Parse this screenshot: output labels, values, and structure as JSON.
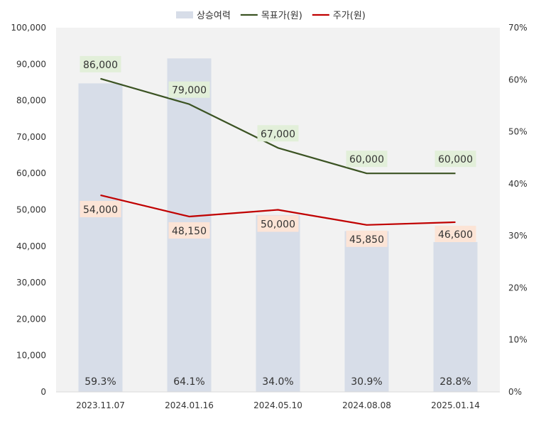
{
  "chart_data": {
    "type": "bar+line",
    "categories": [
      "2023.11.07",
      "2024.01.16",
      "2024.05.10",
      "2024.08.08",
      "2025.01.14"
    ],
    "series": [
      {
        "name": "상승여력",
        "type": "bar",
        "axis": "right",
        "values": [
          59.3,
          64.1,
          34.0,
          30.9,
          28.8
        ],
        "labels": [
          "59.3%",
          "64.1%",
          "34.0%",
          "30.9%",
          "28.8%"
        ],
        "color": "#d7dde8"
      },
      {
        "name": "목표가(원)",
        "type": "line",
        "axis": "left",
        "values": [
          86000,
          79000,
          67000,
          60000,
          60000
        ],
        "labels": [
          "86,000",
          "79,000",
          "67,000",
          "60,000",
          "60,000"
        ],
        "color": "#3b5323",
        "label_bg": "#e2efd9"
      },
      {
        "name": "주가(원)",
        "type": "line",
        "axis": "left",
        "values": [
          54000,
          48150,
          50000,
          45850,
          46600
        ],
        "labels": [
          "54,000",
          "48,150",
          "50,000",
          "45,850",
          "46,600"
        ],
        "color": "#c00000",
        "label_bg": "#fce4d6"
      }
    ],
    "y_left": {
      "range": [
        0,
        100000
      ],
      "ticks": [
        "0",
        "10,000",
        "20,000",
        "30,000",
        "40,000",
        "50,000",
        "60,000",
        "70,000",
        "80,000",
        "90,000",
        "100,000"
      ]
    },
    "y_right": {
      "range": [
        0,
        70
      ],
      "ticks": [
        "0%",
        "10%",
        "20%",
        "30%",
        "40%",
        "50%",
        "60%",
        "70%"
      ]
    },
    "legend_position": "top-center",
    "grid": false,
    "plot_background": "#f2f2f2"
  }
}
